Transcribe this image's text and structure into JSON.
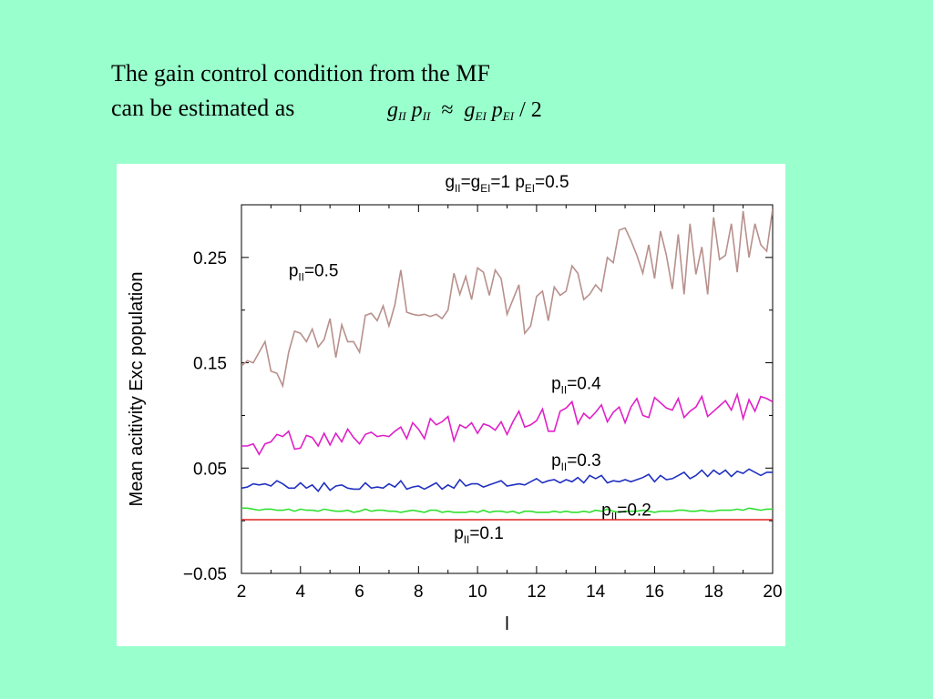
{
  "slide": {
    "heading_line1": "The gain control condition from the MF",
    "heading_line2": "can be estimated as",
    "formula": {
      "lhs_g": "g",
      "lhs_g_sub": "II",
      "lhs_p": "p",
      "lhs_p_sub": "II",
      "op": "≈",
      "rhs_g": "g",
      "rhs_g_sub": "EI",
      "rhs_p": "p",
      "rhs_p_sub": "EI",
      "rhs_tail": "/ 2"
    },
    "background_color": "#99ffcc"
  },
  "chart_data": {
    "type": "line",
    "title_parts": [
      "g",
      "II",
      "=g",
      "EI",
      "=1   p",
      "EI",
      "=0.5"
    ],
    "xlabel": "l",
    "ylabel": "Mean acitivity Exc population",
    "xlim": [
      2,
      20
    ],
    "ylim": [
      -0.05,
      0.3
    ],
    "xticks": [
      2,
      4,
      6,
      8,
      10,
      12,
      14,
      16,
      18,
      20
    ],
    "yticks": [
      -0.05,
      0.05,
      0.15,
      0.25
    ],
    "ytick_labels": [
      "−0.05",
      "0.05",
      "0.15",
      "0.25"
    ],
    "x": [
      2.0,
      2.2,
      2.4,
      2.6,
      2.8,
      3.0,
      3.2,
      3.4,
      3.6,
      3.8,
      4.0,
      4.2,
      4.4,
      4.6,
      4.8,
      5.0,
      5.2,
      5.4,
      5.6,
      5.8,
      6.0,
      6.2,
      6.4,
      6.6,
      6.8,
      7.0,
      7.2,
      7.4,
      7.6,
      7.8,
      8.0,
      8.2,
      8.4,
      8.6,
      8.8,
      9.0,
      9.2,
      9.4,
      9.6,
      9.8,
      10.0,
      10.2,
      10.4,
      10.6,
      10.8,
      11.0,
      11.2,
      11.4,
      11.6,
      11.8,
      12.0,
      12.2,
      12.4,
      12.6,
      12.8,
      13.0,
      13.2,
      13.4,
      13.6,
      13.8,
      14.0,
      14.2,
      14.4,
      14.6,
      14.8,
      15.0,
      15.2,
      15.4,
      15.6,
      15.8,
      16.0,
      16.2,
      16.4,
      16.6,
      16.8,
      17.0,
      17.2,
      17.4,
      17.6,
      17.8,
      18.0,
      18.2,
      18.4,
      18.6,
      18.8,
      19.0,
      19.2,
      19.4,
      19.6,
      19.8,
      20.0
    ],
    "series": [
      {
        "name": "0.5",
        "color": "#b8908c",
        "label_x": 3.6,
        "label_y": 0.232,
        "values": [
          0.147,
          0.152,
          0.15,
          0.16,
          0.17,
          0.142,
          0.14,
          0.128,
          0.16,
          0.18,
          0.178,
          0.17,
          0.182,
          0.165,
          0.172,
          0.192,
          0.155,
          0.186,
          0.17,
          0.17,
          0.16,
          0.195,
          0.197,
          0.19,
          0.204,
          0.185,
          0.205,
          0.238,
          0.198,
          0.196,
          0.195,
          0.196,
          0.194,
          0.196,
          0.192,
          0.2,
          0.235,
          0.215,
          0.232,
          0.21,
          0.24,
          0.236,
          0.214,
          0.238,
          0.23,
          0.196,
          0.21,
          0.224,
          0.178,
          0.185,
          0.213,
          0.218,
          0.19,
          0.222,
          0.214,
          0.218,
          0.242,
          0.235,
          0.21,
          0.215,
          0.224,
          0.218,
          0.25,
          0.245,
          0.276,
          0.278,
          0.266,
          0.252,
          0.235,
          0.262,
          0.23,
          0.275,
          0.252,
          0.22,
          0.272,
          0.215,
          0.282,
          0.234,
          0.26,
          0.215,
          0.288,
          0.248,
          0.252,
          0.282,
          0.236,
          0.294,
          0.25,
          0.282,
          0.262,
          0.256,
          0.296
        ]
      },
      {
        "name": "0.4",
        "color": "#e020c8",
        "label_x": 12.5,
        "label_y": 0.125,
        "values": [
          0.071,
          0.071,
          0.073,
          0.063,
          0.073,
          0.075,
          0.082,
          0.08,
          0.085,
          0.068,
          0.069,
          0.081,
          0.079,
          0.071,
          0.083,
          0.072,
          0.083,
          0.075,
          0.087,
          0.079,
          0.073,
          0.082,
          0.084,
          0.08,
          0.081,
          0.08,
          0.085,
          0.089,
          0.078,
          0.093,
          0.087,
          0.078,
          0.097,
          0.091,
          0.094,
          0.099,
          0.076,
          0.091,
          0.088,
          0.093,
          0.083,
          0.092,
          0.09,
          0.086,
          0.094,
          0.082,
          0.094,
          0.104,
          0.089,
          0.091,
          0.095,
          0.106,
          0.085,
          0.085,
          0.104,
          0.107,
          0.113,
          0.092,
          0.102,
          0.097,
          0.103,
          0.11,
          0.094,
          0.103,
          0.108,
          0.093,
          0.108,
          0.116,
          0.1,
          0.098,
          0.117,
          0.112,
          0.107,
          0.105,
          0.116,
          0.098,
          0.104,
          0.108,
          0.118,
          0.099,
          0.104,
          0.109,
          0.114,
          0.105,
          0.12,
          0.097,
          0.115,
          0.104,
          0.118,
          0.116,
          0.113
        ]
      },
      {
        "name": "0.3",
        "color": "#2030c0",
        "label_x": 12.5,
        "label_y": 0.052,
        "values": [
          0.031,
          0.032,
          0.035,
          0.034,
          0.035,
          0.033,
          0.038,
          0.035,
          0.031,
          0.031,
          0.036,
          0.031,
          0.034,
          0.028,
          0.036,
          0.029,
          0.033,
          0.034,
          0.031,
          0.03,
          0.03,
          0.036,
          0.031,
          0.032,
          0.031,
          0.035,
          0.032,
          0.038,
          0.03,
          0.032,
          0.033,
          0.03,
          0.033,
          0.036,
          0.03,
          0.034,
          0.031,
          0.039,
          0.033,
          0.035,
          0.035,
          0.032,
          0.034,
          0.036,
          0.038,
          0.033,
          0.034,
          0.035,
          0.034,
          0.037,
          0.04,
          0.036,
          0.038,
          0.039,
          0.036,
          0.039,
          0.037,
          0.041,
          0.036,
          0.043,
          0.04,
          0.043,
          0.036,
          0.038,
          0.037,
          0.039,
          0.037,
          0.039,
          0.041,
          0.044,
          0.037,
          0.043,
          0.039,
          0.04,
          0.043,
          0.046,
          0.04,
          0.043,
          0.048,
          0.042,
          0.048,
          0.044,
          0.048,
          0.042,
          0.047,
          0.045,
          0.049,
          0.046,
          0.043,
          0.046,
          0.046
        ]
      },
      {
        "name": "0.2",
        "color": "#30e030",
        "label_x": 14.2,
        "label_y": 0.005,
        "values": [
          0.012,
          0.012,
          0.011,
          0.01,
          0.011,
          0.011,
          0.01,
          0.01,
          0.011,
          0.009,
          0.011,
          0.01,
          0.01,
          0.009,
          0.011,
          0.01,
          0.009,
          0.009,
          0.01,
          0.008,
          0.009,
          0.011,
          0.009,
          0.01,
          0.01,
          0.009,
          0.009,
          0.008,
          0.009,
          0.01,
          0.009,
          0.008,
          0.01,
          0.01,
          0.008,
          0.009,
          0.008,
          0.008,
          0.008,
          0.009,
          0.008,
          0.01,
          0.008,
          0.009,
          0.009,
          0.008,
          0.009,
          0.007,
          0.009,
          0.009,
          0.008,
          0.008,
          0.008,
          0.009,
          0.008,
          0.009,
          0.008,
          0.008,
          0.009,
          0.008,
          0.01,
          0.009,
          0.011,
          0.009,
          0.008,
          0.009,
          0.009,
          0.009,
          0.01,
          0.009,
          0.008,
          0.009,
          0.009,
          0.009,
          0.01,
          0.01,
          0.009,
          0.009,
          0.01,
          0.009,
          0.009,
          0.01,
          0.01,
          0.01,
          0.011,
          0.01,
          0.012,
          0.011,
          0.01,
          0.011,
          0.011
        ]
      },
      {
        "name": "0.1",
        "color": "#e02020",
        "label_x": 9.2,
        "label_y": -0.017,
        "values": [
          0.001,
          0.001,
          0.001,
          0.001,
          0.001,
          0.001,
          0.001,
          0.001,
          0.001,
          0.001,
          0.001,
          0.001,
          0.001,
          0.001,
          0.001,
          0.001,
          0.001,
          0.001,
          0.001,
          0.001,
          0.001,
          0.001,
          0.001,
          0.001,
          0.001,
          0.001,
          0.001,
          0.001,
          0.001,
          0.001,
          0.001,
          0.001,
          0.001,
          0.001,
          0.001,
          0.001,
          0.001,
          0.001,
          0.001,
          0.001,
          0.001,
          0.001,
          0.001,
          0.001,
          0.001,
          0.001,
          0.001,
          0.001,
          0.001,
          0.001,
          0.001,
          0.001,
          0.001,
          0.001,
          0.001,
          0.001,
          0.001,
          0.001,
          0.001,
          0.001,
          0.001,
          0.001,
          0.001,
          0.001,
          0.001,
          0.001,
          0.001,
          0.001,
          0.001,
          0.001,
          0.001,
          0.001,
          0.001,
          0.001,
          0.001,
          0.001,
          0.001,
          0.001,
          0.001,
          0.001,
          0.001,
          0.001,
          0.001,
          0.001,
          0.001,
          0.001,
          0.001,
          0.001,
          0.001,
          0.001,
          0.001
        ]
      }
    ],
    "series_label_prefix": "p",
    "series_label_sub": "II",
    "series_label_eq": "=",
    "grid": false
  }
}
